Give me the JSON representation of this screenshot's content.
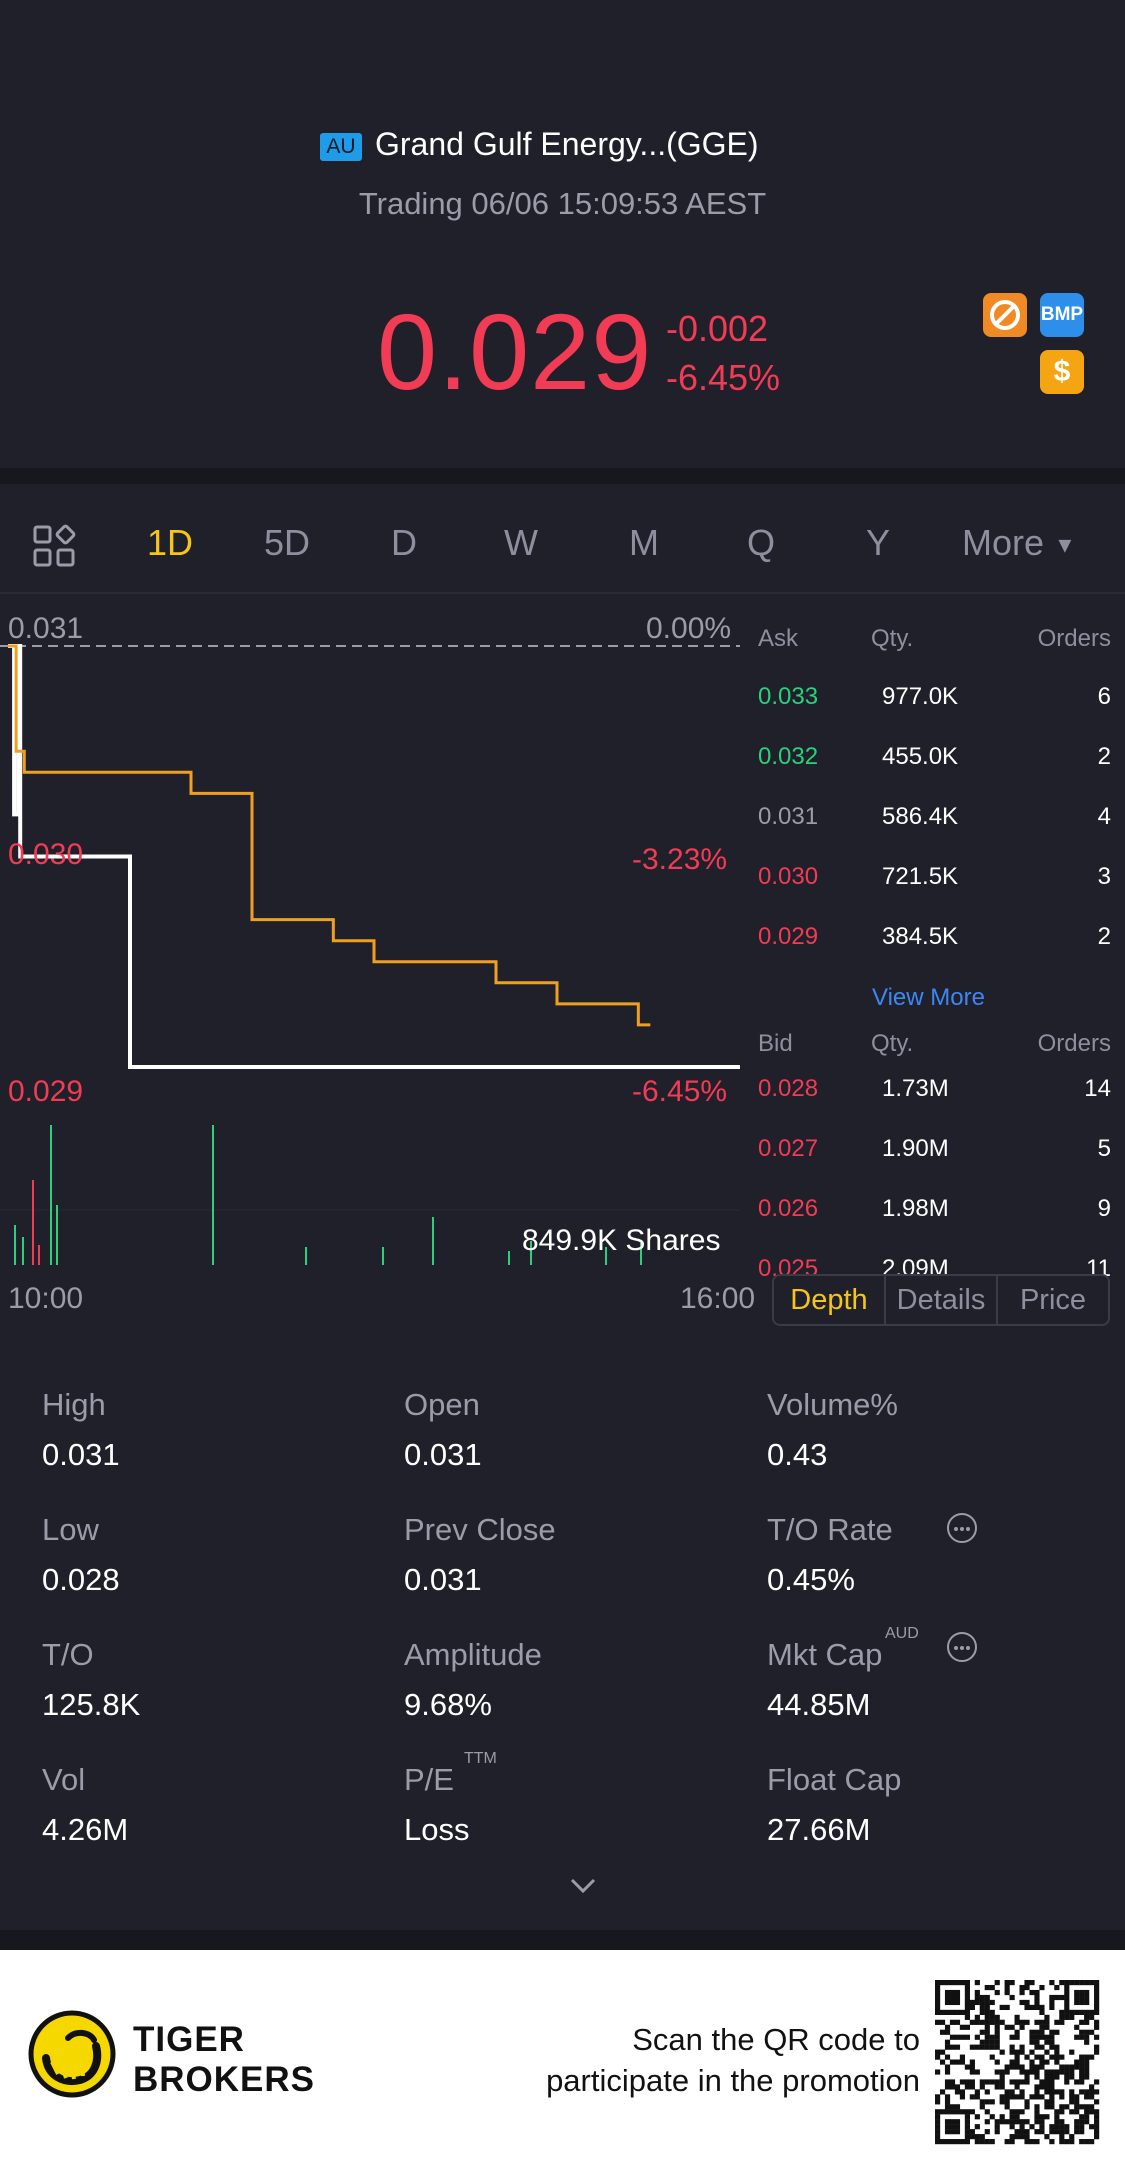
{
  "header": {
    "market_badge": "AU",
    "title": "Grand Gulf Energy...(GGE)",
    "status": "Trading 06/06 15:09:53 AEST",
    "price": "0.029",
    "change": "-0.002",
    "change_pct": "-6.45%",
    "badges": [
      "no-short-icon",
      "BMP",
      "$"
    ]
  },
  "period_tabs": [
    "1D",
    "5D",
    "D",
    "W",
    "M",
    "Q",
    "Y",
    "More"
  ],
  "active_tab": "1D",
  "chart": {
    "y_top_label": "0.031",
    "y_top_pct": "0.00%",
    "y_mid_label": "0.030",
    "y_mid_pct": "-3.23%",
    "y_bot_label": "0.029",
    "y_bot_pct": "-6.45%",
    "volume_label": "849.9K Shares",
    "x_start": "10:00",
    "x_end": "16:00"
  },
  "chart_data": {
    "type": "line",
    "x_range": [
      "10:00",
      "16:00"
    ],
    "ylim": [
      0.029,
      0.031
    ],
    "series": [
      {
        "color": "#ffffff",
        "x": [
          "10:00",
          "10:02",
          "10:03",
          "10:05",
          "10:06",
          "10:30",
          "11:00",
          "16:00"
        ],
        "values": [
          0.031,
          0.031,
          0.0302,
          0.031,
          0.03,
          0.03,
          0.029,
          0.029
        ]
      },
      {
        "color": "#f0a020",
        "x": [
          "10:00",
          "10:04",
          "10:08",
          "11:30",
          "12:00",
          "12:40",
          "13:00",
          "14:00",
          "14:30",
          "15:10"
        ],
        "values": [
          0.031,
          0.0305,
          0.0304,
          0.0303,
          0.0297,
          0.0296,
          0.0295,
          0.0294,
          0.0293,
          0.0292
        ]
      }
    ],
    "colors": {
      "up": "#2ad07c",
      "down": "#f23b55",
      "price": "#ffffff",
      "avg": "#f0a020"
    }
  },
  "order_book": {
    "ask_headers": [
      "Ask",
      "Qty.",
      "Orders"
    ],
    "asks": [
      {
        "price": "0.033",
        "qty": "977.0K",
        "orders": "6",
        "tone": "green"
      },
      {
        "price": "0.032",
        "qty": "455.0K",
        "orders": "2",
        "tone": "green"
      },
      {
        "price": "0.031",
        "qty": "586.4K",
        "orders": "4",
        "tone": "gray"
      },
      {
        "price": "0.030",
        "qty": "721.5K",
        "orders": "3",
        "tone": "red"
      },
      {
        "price": "0.029",
        "qty": "384.5K",
        "orders": "2",
        "tone": "red"
      }
    ],
    "view_more": "View More",
    "bid_headers": [
      "Bid",
      "Qty.",
      "Orders"
    ],
    "bids": [
      {
        "price": "0.028",
        "qty": "1.73M",
        "orders": "14",
        "tone": "red"
      },
      {
        "price": "0.027",
        "qty": "1.90M",
        "orders": "5",
        "tone": "red"
      },
      {
        "price": "0.026",
        "qty": "1.98M",
        "orders": "9",
        "tone": "red"
      },
      {
        "price": "0.025",
        "qty": "2.09M",
        "orders": "11",
        "tone": "red"
      }
    ]
  },
  "panel_tabs": [
    "Depth",
    "Details",
    "Price"
  ],
  "active_panel_tab": "Depth",
  "stats": [
    {
      "label": "High",
      "value": "0.031"
    },
    {
      "label": "Open",
      "value": "0.031"
    },
    {
      "label": "Volume%",
      "value": "0.43"
    },
    {
      "label": "Low",
      "value": "0.028"
    },
    {
      "label": "Prev Close",
      "value": "0.031"
    },
    {
      "label": "T/O Rate",
      "value": "0.45%"
    },
    {
      "label": "T/O",
      "value": "125.8K"
    },
    {
      "label": "Amplitude",
      "value": "9.68%"
    },
    {
      "label": "Mkt Cap",
      "value": "44.85M",
      "sup": "AUD"
    },
    {
      "label": "Vol",
      "value": "4.26M"
    },
    {
      "label": "P/E",
      "value": "Loss",
      "sup": "TTM"
    },
    {
      "label": "Float Cap",
      "value": "27.66M"
    }
  ],
  "footer": {
    "brand_line1": "TIGER",
    "brand_line2": "BROKERS",
    "promo_line1": "Scan the QR code to",
    "promo_line2": "participate in the promotion"
  }
}
